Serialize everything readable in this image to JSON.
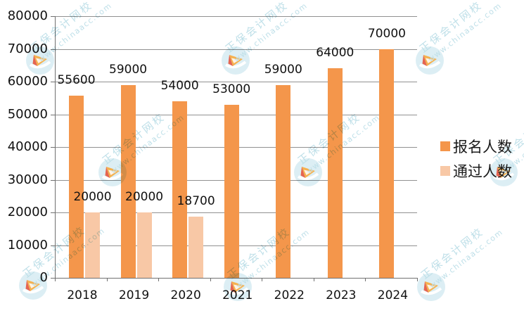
{
  "chart_data": {
    "type": "bar",
    "title": "",
    "xlabel": "",
    "ylabel": "",
    "categories": [
      "2018",
      "2019",
      "2020",
      "2021",
      "2022",
      "2023",
      "2024"
    ],
    "series": [
      {
        "name": "报名人数",
        "color": "#F4964B",
        "values": [
          55600,
          59000,
          54000,
          53000,
          59000,
          64000,
          70000
        ]
      },
      {
        "name": "通过人数",
        "color": "#F8C8A6",
        "values": [
          20000,
          20000,
          18700,
          null,
          null,
          null,
          null
        ]
      }
    ],
    "ylim": [
      0,
      80000
    ],
    "yticks": [
      0,
      10000,
      20000,
      30000,
      40000,
      50000,
      60000,
      70000,
      80000
    ],
    "grid": true,
    "data_labels": true,
    "legend_position": "right"
  },
  "legend": {
    "items": [
      {
        "label": "报名人数",
        "swatch": "#F4964B"
      },
      {
        "label": "通过人数",
        "swatch": "#F8C8A6"
      }
    ]
  },
  "watermark": {
    "brand": "正保会计网校",
    "url": "www.chinaacc.com"
  },
  "colors": {
    "bar_primary": "#F4964B",
    "bar_secondary": "#F8C8A6",
    "gridline": "#919191",
    "axis": "#707070",
    "text": "#111111",
    "watermark_teal": "#B7DCE6"
  }
}
